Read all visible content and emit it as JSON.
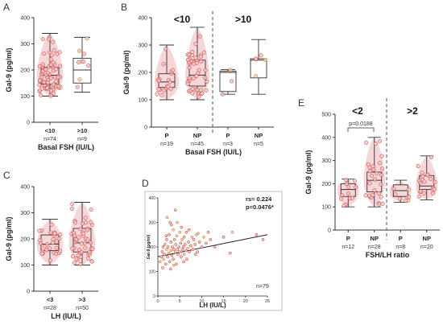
{
  "colors": {
    "point_fill": "#f3c4c8",
    "point_stroke": "#c0392b",
    "point_stroke_gold": "#b8860b",
    "violin_fill": "#f6cfd3",
    "box_stroke": "#333333",
    "axis": "#333333",
    "divider": "#555555",
    "reg_line": "#222222"
  },
  "panels": {
    "A": {
      "letter": "A"
    },
    "B": {
      "letter": "B"
    },
    "C": {
      "letter": "C"
    },
    "D": {
      "letter": "D"
    },
    "E": {
      "letter": "E"
    }
  },
  "chart_data": [
    {
      "id": "A",
      "type": "box",
      "ylabel": "Gal-9 (pg/ml)",
      "xlabel": "Basal FSH (IU/L)",
      "ylim": [
        0,
        400
      ],
      "yticks": [
        "0",
        "100",
        "200",
        "300",
        "400"
      ],
      "categories": [
        "<10",
        ">10"
      ],
      "counts": [
        "n=74",
        "n=9"
      ],
      "boxes": [
        {
          "min": 100,
          "q1": 145,
          "median": 180,
          "q3": 210,
          "max": 340,
          "n": 74,
          "violin": true
        },
        {
          "min": 115,
          "q1": 150,
          "median": 200,
          "q3": 245,
          "max": 325,
          "n": 9,
          "violin": false
        }
      ]
    },
    {
      "id": "B",
      "type": "box",
      "ylabel": "Gal-9 (pg/ml)",
      "xlabel": "Basal FSH (IU/L)",
      "ylim": [
        0,
        400
      ],
      "yticks": [
        "0",
        "100",
        "200",
        "300",
        "400"
      ],
      "group_labels": [
        "<10",
        ">10"
      ],
      "categories": [
        "P",
        "NP",
        "P",
        "NP"
      ],
      "counts": [
        "n=19",
        "n=45",
        "n=3",
        "n=5"
      ],
      "boxes": [
        {
          "min": 100,
          "q1": 145,
          "median": 165,
          "q3": 195,
          "max": 300,
          "n": 19,
          "violin": true
        },
        {
          "min": 100,
          "q1": 150,
          "median": 190,
          "q3": 245,
          "max": 365,
          "n": 45,
          "violin": true
        },
        {
          "min": 120,
          "q1": 130,
          "median": 200,
          "q3": 205,
          "max": 210,
          "n": 3,
          "violin": false
        },
        {
          "min": 120,
          "q1": 180,
          "median": 245,
          "q3": 250,
          "max": 320,
          "n": 5,
          "violin": false
        }
      ]
    },
    {
      "id": "C",
      "type": "box",
      "ylabel": "Gal-9 (pg/ml)",
      "xlabel": "LH (IU/L)",
      "ylim": [
        0,
        400
      ],
      "yticks": [
        "0",
        "100",
        "200",
        "300",
        "400"
      ],
      "categories": [
        "<3",
        ">3"
      ],
      "counts": [
        "n=28",
        "n=50"
      ],
      "boxes": [
        {
          "min": 100,
          "q1": 155,
          "median": 180,
          "q3": 215,
          "max": 275,
          "n": 28,
          "violin": true
        },
        {
          "min": 100,
          "q1": 150,
          "median": 185,
          "q3": 240,
          "max": 340,
          "n": 50,
          "violin": true
        }
      ]
    },
    {
      "id": "D",
      "type": "scatter",
      "ylabel": "Gal-9 (pg/ml)",
      "xlabel": "LH (IU/L)",
      "xlim": [
        0,
        25
      ],
      "ylim": [
        0,
        400
      ],
      "xticks": [
        "0",
        "5",
        "10",
        "15",
        "20",
        "25"
      ],
      "yticks": [
        "0",
        "100",
        "200",
        "300",
        "400"
      ],
      "stat_rs": "rs= 0.224",
      "stat_p": "p=0.0476*",
      "n_label": "n=79",
      "regression": {
        "x0": 0,
        "y0": 160,
        "x1": 25,
        "y1": 250
      },
      "points": [
        [
          0.5,
          140
        ],
        [
          0.8,
          160
        ],
        [
          1.0,
          180
        ],
        [
          1.2,
          200
        ],
        [
          1.3,
          150
        ],
        [
          1.5,
          170
        ],
        [
          1.6,
          210
        ],
        [
          1.8,
          130
        ],
        [
          2.0,
          190
        ],
        [
          2.0,
          230
        ],
        [
          2.2,
          160
        ],
        [
          2.3,
          200
        ],
        [
          2.5,
          175
        ],
        [
          2.6,
          250
        ],
        [
          2.7,
          140
        ],
        [
          2.8,
          300
        ],
        [
          3.0,
          185
        ],
        [
          3.0,
          220
        ],
        [
          3.2,
          165
        ],
        [
          3.3,
          200
        ],
        [
          3.5,
          270
        ],
        [
          3.5,
          150
        ],
        [
          3.7,
          190
        ],
        [
          3.8,
          230
        ],
        [
          4.0,
          180
        ],
        [
          4.0,
          350
        ],
        [
          4.1,
          210
        ],
        [
          4.2,
          130
        ],
        [
          4.3,
          245
        ],
        [
          4.5,
          190
        ],
        [
          4.6,
          170
        ],
        [
          4.8,
          200
        ],
        [
          5.0,
          260
        ],
        [
          5.0,
          180
        ],
        [
          5.2,
          215
        ],
        [
          5.3,
          160
        ],
        [
          5.5,
          230
        ],
        [
          5.6,
          190
        ],
        [
          5.8,
          200
        ],
        [
          6.0,
          240
        ],
        [
          6.0,
          170
        ],
        [
          6.2,
          210
        ],
        [
          6.4,
          185
        ],
        [
          6.5,
          260
        ],
        [
          6.8,
          195
        ],
        [
          7.0,
          220
        ],
        [
          7.2,
          180
        ],
        [
          7.5,
          205
        ],
        [
          7.8,
          240
        ],
        [
          8.0,
          190
        ],
        [
          8.2,
          230
        ],
        [
          8.5,
          210
        ],
        [
          8.8,
          250
        ],
        [
          9.0,
          180
        ],
        [
          9.5,
          220
        ],
        [
          10.0,
          200
        ],
        [
          10.5,
          240
        ],
        [
          11.0,
          215
        ],
        [
          11.5,
          260
        ],
        [
          12.0,
          230
        ],
        [
          2.1,
          320
        ],
        [
          3.1,
          290
        ],
        [
          1.1,
          115
        ],
        [
          2.9,
          110
        ],
        [
          4.4,
          300
        ],
        [
          5.4,
          280
        ],
        [
          6.6,
          150
        ],
        [
          7.1,
          270
        ],
        [
          9.2,
          255
        ],
        [
          13.0,
          200
        ],
        [
          15.0,
          240
        ],
        [
          16.5,
          175
        ],
        [
          17.0,
          260
        ],
        [
          22.5,
          250
        ],
        [
          24.0,
          230
        ],
        [
          1.9,
          245
        ],
        [
          3.6,
          125
        ],
        [
          5.9,
          140
        ],
        [
          8.6,
          170
        ]
      ]
    },
    {
      "id": "E",
      "type": "box",
      "ylabel": "Gal-9 (pg/ml)",
      "xlabel": "FSH/LH ratio",
      "ylim": [
        0,
        500
      ],
      "yticks": [
        "0",
        "100",
        "200",
        "300",
        "400",
        "500"
      ],
      "group_labels": [
        "<2",
        ">2"
      ],
      "categories": [
        "P",
        "NP",
        "P",
        "NP"
      ],
      "counts": [
        "n=12",
        "n=28",
        "n=8",
        "n=20"
      ],
      "annotation": "p=0.0188",
      "boxes": [
        {
          "min": 100,
          "q1": 145,
          "median": 175,
          "q3": 200,
          "max": 220,
          "n": 12,
          "violin": true
        },
        {
          "min": 100,
          "q1": 165,
          "median": 215,
          "q3": 250,
          "max": 400,
          "n": 28,
          "violin": true
        },
        {
          "min": 120,
          "q1": 145,
          "median": 170,
          "q3": 195,
          "max": 215,
          "n": 8,
          "violin": true
        },
        {
          "min": 130,
          "q1": 175,
          "median": 190,
          "q3": 235,
          "max": 320,
          "n": 20,
          "violin": true
        }
      ]
    }
  ]
}
